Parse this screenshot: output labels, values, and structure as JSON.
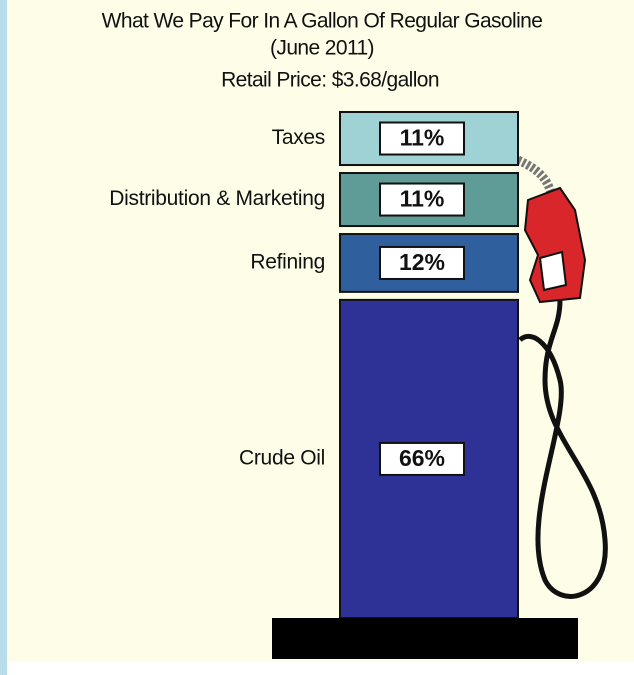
{
  "chart_data": {
    "type": "stacked-column",
    "title": "What We Pay For In A Gallon Of Regular Gasoline",
    "subtitle": "(June 2011)",
    "annotation": "Retail Price: $3.68/gallon",
    "categories": [
      "Taxes",
      "Distribution & Marketing",
      "Refining",
      "Crude Oil"
    ],
    "values": [
      11,
      11,
      12,
      66
    ],
    "value_labels": [
      "11%",
      "11%",
      "12%",
      "66%"
    ],
    "colors": [
      "#9fd2d4",
      "#5f9c98",
      "#2f5f9c",
      "#2e3196"
    ]
  }
}
